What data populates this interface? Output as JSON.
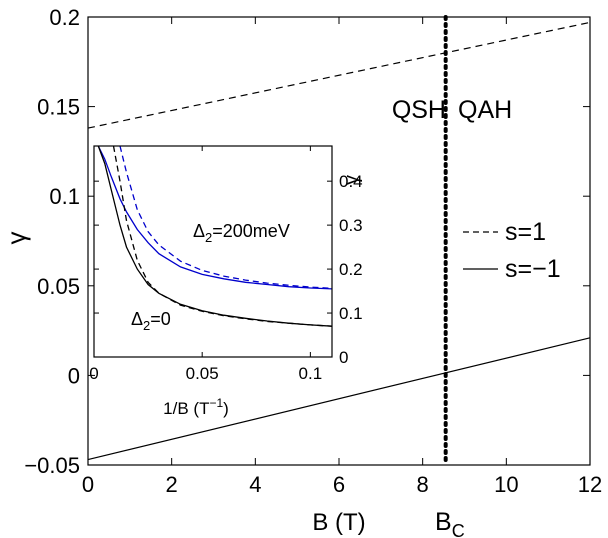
{
  "chart_data": [
    {
      "type": "line",
      "title": "",
      "xlabel": "B (T)",
      "ylabel": "γ",
      "xlim": [
        0,
        12
      ],
      "ylim": [
        -0.05,
        0.2
      ],
      "x_ticks": [
        "0",
        "2",
        "4",
        "6",
        "8",
        "10",
        "12"
      ],
      "y_ticks": [
        "−0.05",
        "0",
        "0.05",
        "0.1",
        "0.15",
        "0.2"
      ],
      "x_tick_values": [
        0,
        2,
        4,
        6,
        8,
        10,
        12
      ],
      "y_tick_values": [
        -0.05,
        0,
        0.05,
        0.1,
        0.15,
        0.2
      ],
      "grid": false,
      "legend_position": "right",
      "series": [
        {
          "name": "s=1",
          "style": "dashed",
          "color": "#000000",
          "x": [
            0,
            12
          ],
          "y": [
            0.138,
            0.197
          ]
        },
        {
          "name": "s=−1",
          "style": "solid",
          "color": "#000000",
          "x": [
            0,
            12
          ],
          "y": [
            -0.047,
            0.021
          ]
        }
      ],
      "critical_field": {
        "x": 8.55,
        "style": "dotted",
        "label": "B",
        "label_sub": "C"
      },
      "phase_labels": [
        "QSH",
        "QAH"
      ]
    },
    {
      "type": "line",
      "title": "",
      "xlabel": "1/B (T",
      "xlabel_sup": "−1",
      "xlabel_close": ")",
      "ylabel": "γ",
      "xlim": [
        0,
        0.11
      ],
      "ylim": [
        0,
        0.48
      ],
      "x_ticks": [
        "0",
        "0.05",
        "0.1"
      ],
      "y_ticks": [
        "0",
        "0.1",
        "0.2",
        "0.3",
        "0.4"
      ],
      "x_tick_values": [
        0,
        0.05,
        0.1
      ],
      "y_tick_values": [
        0,
        0.1,
        0.2,
        0.3,
        0.4
      ],
      "y_axis_side": "right",
      "series": [
        {
          "style": "solid",
          "color": "#0000cc",
          "x": [
            0.002,
            0.005,
            0.008,
            0.012,
            0.015,
            0.02,
            0.025,
            0.03,
            0.04,
            0.05,
            0.06,
            0.07,
            0.08,
            0.09,
            0.1,
            0.11
          ],
          "y": [
            0.48,
            0.45,
            0.41,
            0.36,
            0.33,
            0.29,
            0.26,
            0.235,
            0.205,
            0.188,
            0.178,
            0.17,
            0.165,
            0.16,
            0.157,
            0.155
          ]
        },
        {
          "style": "dashed",
          "color": "#0000cc",
          "x": [
            0.012,
            0.015,
            0.02,
            0.025,
            0.03,
            0.04,
            0.05,
            0.06,
            0.07,
            0.08,
            0.09,
            0.1,
            0.11
          ],
          "y": [
            0.48,
            0.42,
            0.335,
            0.285,
            0.255,
            0.218,
            0.197,
            0.184,
            0.175,
            0.168,
            0.163,
            0.159,
            0.156
          ]
        },
        {
          "style": "solid",
          "color": "#000000",
          "x": [
            0.002,
            0.005,
            0.008,
            0.012,
            0.015,
            0.02,
            0.025,
            0.03,
            0.04,
            0.05,
            0.06,
            0.07,
            0.08,
            0.09,
            0.1,
            0.11
          ],
          "y": [
            0.48,
            0.44,
            0.38,
            0.3,
            0.25,
            0.2,
            0.165,
            0.145,
            0.12,
            0.105,
            0.095,
            0.088,
            0.082,
            0.077,
            0.073,
            0.07
          ]
        },
        {
          "style": "dashed",
          "color": "#000000",
          "x": [
            0.009,
            0.012,
            0.015,
            0.02,
            0.025,
            0.03,
            0.04,
            0.05,
            0.06,
            0.07,
            0.08,
            0.09,
            0.1,
            0.11
          ],
          "y": [
            0.48,
            0.4,
            0.31,
            0.22,
            0.17,
            0.145,
            0.118,
            0.104,
            0.094,
            0.087,
            0.081,
            0.077,
            0.073,
            0.07
          ]
        }
      ],
      "annotations": [
        {
          "base": "Δ",
          "sub": "2",
          "rest": "=200meV"
        },
        {
          "base": "Δ",
          "sub": "2",
          "rest": "=0"
        }
      ]
    }
  ],
  "colors": {
    "axis": "#000000",
    "blue_series": "#0000cc"
  }
}
